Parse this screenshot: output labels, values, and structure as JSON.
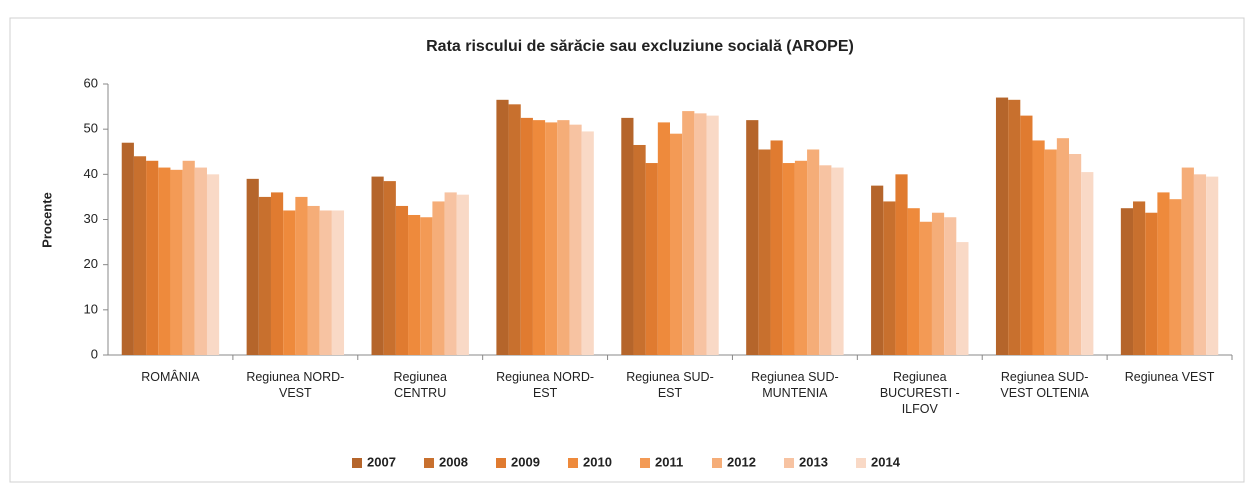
{
  "chart_data": {
    "type": "bar",
    "title": "Rata riscului de sărăcie sau excluziune socială (AROPE)",
    "y_label": "Procente",
    "categories": [
      "ROMÂNIA",
      "Regiunea NORD-VEST",
      "Regiunea CENTRU",
      "Regiunea NORD-EST",
      "Regiunea SUD-EST",
      "Regiunea SUD-MUNTENIA",
      "Regiunea BUCURESTI - ILFOV",
      "Regiunea SUD-VEST OLTENIA",
      "Regiunea VEST"
    ],
    "series": [
      {
        "name": "2007",
        "color": "#b5652b",
        "values": [
          47,
          39,
          39.5,
          56.5,
          52.5,
          52,
          37.5,
          57,
          32.5
        ]
      },
      {
        "name": "2008",
        "color": "#c8702e",
        "values": [
          44,
          35,
          38.5,
          55.5,
          46.5,
          45.5,
          34,
          56.5,
          34
        ]
      },
      {
        "name": "2009",
        "color": "#e07b30",
        "values": [
          43,
          36,
          33,
          52.5,
          42.5,
          47.5,
          40,
          53,
          31.5
        ]
      },
      {
        "name": "2010",
        "color": "#ee8a3c",
        "values": [
          41.5,
          32,
          31,
          52,
          51.5,
          42.5,
          32.5,
          47.5,
          36
        ]
      },
      {
        "name": "2011",
        "color": "#f39a55",
        "values": [
          41,
          35,
          30.5,
          51.5,
          49,
          43,
          29.5,
          45.5,
          34.5
        ]
      },
      {
        "name": "2012",
        "color": "#f5ad78",
        "values": [
          43,
          33,
          34,
          52,
          54,
          45.5,
          31.5,
          48,
          41.5
        ]
      },
      {
        "name": "2013",
        "color": "#f7c3a2",
        "values": [
          41.5,
          32,
          36,
          51,
          53.5,
          42,
          30.5,
          44.5,
          40
        ]
      },
      {
        "name": "2014",
        "color": "#f9d9c6",
        "values": [
          40,
          32,
          35.5,
          49.5,
          53,
          41.5,
          25,
          40.5,
          39.5
        ]
      }
    ],
    "ylim": [
      0,
      60
    ],
    "yticks": [
      0,
      10,
      20,
      30,
      40,
      50,
      60
    ],
    "grid": false,
    "legend": "bottom"
  }
}
